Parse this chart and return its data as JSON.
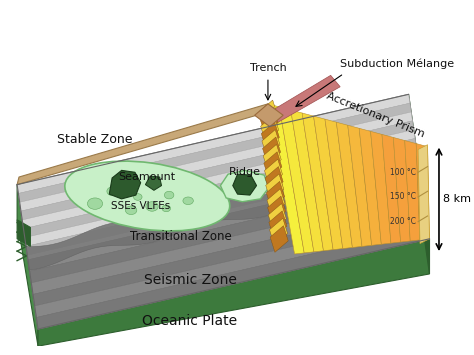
{
  "bg_color": "#ffffff",
  "labels": {
    "trench": "Trench",
    "subduction_melange": "Subduction Mélange",
    "accretionary_prism": "Accretionary Prism",
    "stable_zone": "Stable Zone",
    "seamount": "Seamount",
    "sses_vlfes": "SSEs VLFEs",
    "ridge": "Ridge",
    "transitional_zone": "Transitional Zone",
    "seismic_zone": "Seismic Zone",
    "oceanic_plate": "Oceanic Plate",
    "depth_label": "8 km",
    "temp100": "100 °C",
    "temp150": "150 °C",
    "temp200": "200 °C"
  },
  "colors": {
    "oceanic_plate_green": "#3d7a3d",
    "oceanic_plate_green_light": "#4a8c4a",
    "oceanic_plate_green_dark": "#2d5e2d",
    "seamount_blob": "#c8f0c8",
    "seamount_blob_edge": "#70b870",
    "seamount_rock": "#2d5a2d",
    "ridge_blob": "#c8f0c8",
    "ridge_rock": "#2d5a2d",
    "trench_brown": "#c49a6c",
    "rim_tan": "#c8a878"
  }
}
